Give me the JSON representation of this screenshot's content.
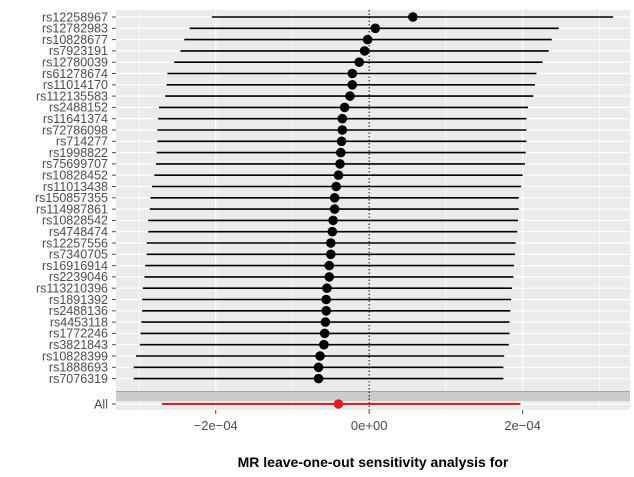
{
  "chart_data": {
    "type": "scatter",
    "subtype": "forest",
    "title": "",
    "xlabel": "MR leave-one-out sensitivity analysis for",
    "ylabel": "",
    "xlim": [
      -0.00033,
      0.00034
    ],
    "xticks": [
      -0.0002,
      0.0,
      0.0002
    ],
    "xtick_labels": [
      "−2e−04",
      "0e+00",
      "2e−04"
    ],
    "reference_line_x": 0,
    "grid": true,
    "colors": {
      "panel_background": "#ebebeb",
      "grid": "#ffffff",
      "point": "#000000",
      "summary": "#e41a1c",
      "summary_band": "#cccccc"
    },
    "snps": [
      {
        "label": "rs12258967",
        "estimate": 5.7e-05,
        "lower": -0.000205,
        "upper": 0.000318
      },
      {
        "label": "rs12782983",
        "estimate": 8e-06,
        "lower": -0.000234,
        "upper": 0.000247
      },
      {
        "label": "rs10828677",
        "estimate": -2e-06,
        "lower": -0.000241,
        "upper": 0.000238
      },
      {
        "label": "rs7923191",
        "estimate": -6e-06,
        "lower": -0.000246,
        "upper": 0.000234
      },
      {
        "label": "rs12780039",
        "estimate": -1.3e-05,
        "lower": -0.000254,
        "upper": 0.000226
      },
      {
        "label": "rs61278674",
        "estimate": -2.2e-05,
        "lower": -0.000263,
        "upper": 0.000218
      },
      {
        "label": "rs11014170",
        "estimate": -2.2e-05,
        "lower": -0.000264,
        "upper": 0.000216
      },
      {
        "label": "rs112135583",
        "estimate": -2.5e-05,
        "lower": -0.000266,
        "upper": 0.000214
      },
      {
        "label": "rs2488152",
        "estimate": -3.2e-05,
        "lower": -0.000274,
        "upper": 0.000207
      },
      {
        "label": "rs11641374",
        "estimate": -3.5e-05,
        "lower": -0.000275,
        "upper": 0.000205
      },
      {
        "label": "rs72786098",
        "estimate": -3.5e-05,
        "lower": -0.000276,
        "upper": 0.000205
      },
      {
        "label": "rs714277",
        "estimate": -3.6e-05,
        "lower": -0.000276,
        "upper": 0.000205
      },
      {
        "label": "rs1998822",
        "estimate": -3.7e-05,
        "lower": -0.000277,
        "upper": 0.000204
      },
      {
        "label": "rs75699707",
        "estimate": -3.8e-05,
        "lower": -0.000278,
        "upper": 0.000203
      },
      {
        "label": "rs10828452",
        "estimate": -4e-05,
        "lower": -0.00028,
        "upper": 0.0002
      },
      {
        "label": "rs11013438",
        "estimate": -4.3e-05,
        "lower": -0.000283,
        "upper": 0.000198
      },
      {
        "label": "rs150857355",
        "estimate": -4.5e-05,
        "lower": -0.000285,
        "upper": 0.000195
      },
      {
        "label": "rs114987861",
        "estimate": -4.5e-05,
        "lower": -0.000286,
        "upper": 0.000195
      },
      {
        "label": "rs10828542",
        "estimate": -4.7e-05,
        "lower": -0.000288,
        "upper": 0.000194
      },
      {
        "label": "rs4748474",
        "estimate": -4.8e-05,
        "lower": -0.000288,
        "upper": 0.000193
      },
      {
        "label": "rs12257556",
        "estimate": -5e-05,
        "lower": -0.00029,
        "upper": 0.000191
      },
      {
        "label": "rs7340705",
        "estimate": -5e-05,
        "lower": -0.00029,
        "upper": 0.00019
      },
      {
        "label": "rs16916914",
        "estimate": -5.2e-05,
        "lower": -0.000292,
        "upper": 0.000189
      },
      {
        "label": "rs2239046",
        "estimate": -5.2e-05,
        "lower": -0.000293,
        "upper": 0.000188
      },
      {
        "label": "rs113210396",
        "estimate": -5.5e-05,
        "lower": -0.000295,
        "upper": 0.000186
      },
      {
        "label": "rs1891392",
        "estimate": -5.6e-05,
        "lower": -0.000296,
        "upper": 0.000185
      },
      {
        "label": "rs2488136",
        "estimate": -5.6e-05,
        "lower": -0.000296,
        "upper": 0.000184
      },
      {
        "label": "rs4453118",
        "estimate": -5.7e-05,
        "lower": -0.000297,
        "upper": 0.000183
      },
      {
        "label": "rs1772246",
        "estimate": -5.8e-05,
        "lower": -0.000298,
        "upper": 0.000183
      },
      {
        "label": "rs3821843",
        "estimate": -5.9e-05,
        "lower": -0.000299,
        "upper": 0.000182
      },
      {
        "label": "rs10828399",
        "estimate": -6.4e-05,
        "lower": -0.000304,
        "upper": 0.000176
      },
      {
        "label": "rs1888693",
        "estimate": -6.6e-05,
        "lower": -0.000307,
        "upper": 0.000175
      },
      {
        "label": "rs7076319",
        "estimate": -6.6e-05,
        "lower": -0.000307,
        "upper": 0.000175
      }
    ],
    "summary": {
      "label": "All",
      "estimate": -4e-05,
      "lower": -0.00027,
      "upper": 0.000197
    }
  }
}
